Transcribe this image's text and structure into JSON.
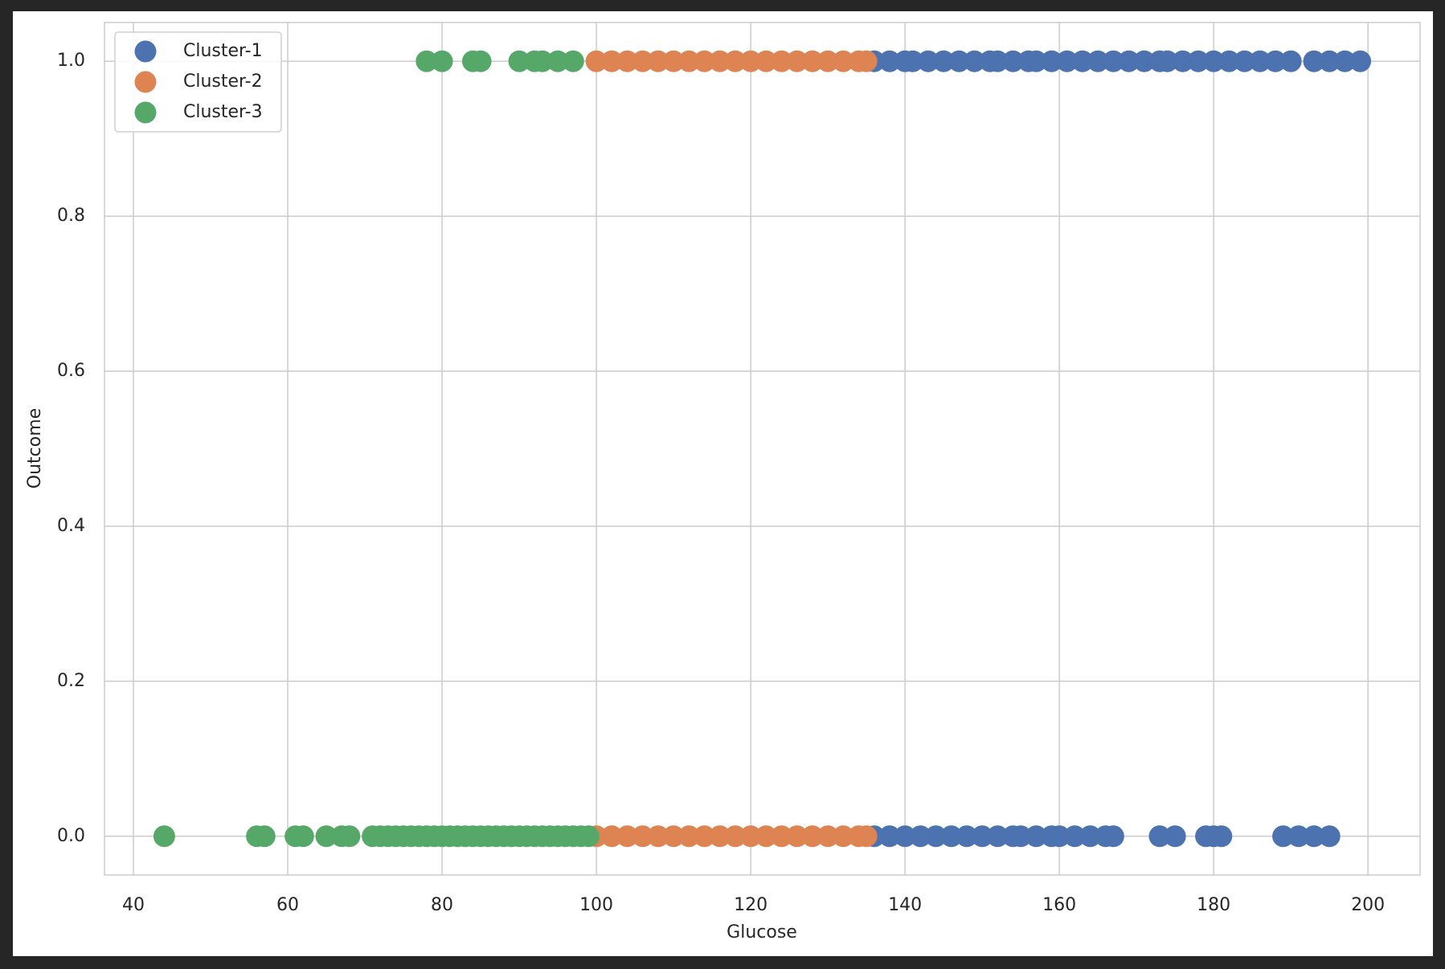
{
  "chart_data": {
    "type": "scatter",
    "x_label": "Glucose",
    "y_label": "Outcome",
    "xlim": [
      36.25,
      206.75
    ],
    "ylim": [
      -0.05,
      1.05
    ],
    "xticks": [
      40,
      60,
      80,
      100,
      120,
      140,
      160,
      180,
      200
    ],
    "yticks": [
      {
        "value": 0,
        "label": "0.0"
      },
      0.2,
      0.4,
      0.6,
      0.8,
      {
        "value": 1,
        "label": "1.0"
      }
    ],
    "grid": true,
    "legend": "upper left",
    "series": [
      {
        "name": "Cluster-1",
        "color": "#4c72b0",
        "x": [
          136,
          138,
          140,
          142,
          144,
          146,
          148,
          150,
          152,
          154,
          155,
          157,
          159,
          160,
          162,
          164,
          166,
          167,
          173,
          175,
          179,
          180,
          181,
          189,
          191,
          193,
          195,
          136,
          138,
          140,
          141,
          143,
          145,
          147,
          149,
          151,
          152,
          154,
          156,
          157,
          159,
          161,
          163,
          165,
          167,
          169,
          171,
          173,
          174,
          176,
          178,
          180,
          182,
          184,
          186,
          188,
          190,
          193,
          195,
          197,
          199
        ],
        "y": [
          0,
          0,
          0,
          0,
          0,
          0,
          0,
          0,
          0,
          0,
          0,
          0,
          0,
          0,
          0,
          0,
          0,
          0,
          0,
          0,
          0,
          0,
          0,
          0,
          0,
          0,
          0,
          1,
          1,
          1,
          1,
          1,
          1,
          1,
          1,
          1,
          1,
          1,
          1,
          1,
          1,
          1,
          1,
          1,
          1,
          1,
          1,
          1,
          1,
          1,
          1,
          1,
          1,
          1,
          1,
          1,
          1,
          1,
          1,
          1,
          1
        ]
      },
      {
        "name": "Cluster-2",
        "color": "#dd8452",
        "x": [
          100,
          102,
          104,
          106,
          108,
          110,
          112,
          114,
          116,
          118,
          120,
          122,
          124,
          126,
          128,
          130,
          132,
          134,
          135,
          100,
          102,
          104,
          106,
          108,
          110,
          112,
          114,
          116,
          118,
          120,
          122,
          124,
          126,
          128,
          130,
          132,
          134,
          135
        ],
        "y": [
          0,
          0,
          0,
          0,
          0,
          0,
          0,
          0,
          0,
          0,
          0,
          0,
          0,
          0,
          0,
          0,
          0,
          0,
          0,
          1,
          1,
          1,
          1,
          1,
          1,
          1,
          1,
          1,
          1,
          1,
          1,
          1,
          1,
          1,
          1,
          1,
          1,
          1
        ]
      },
      {
        "name": "Cluster-3",
        "color": "#55a868",
        "x": [
          44,
          56,
          57,
          61,
          62,
          65,
          67,
          68,
          71,
          72,
          73,
          74,
          75,
          76,
          77,
          78,
          79,
          80,
          81,
          82,
          83,
          84,
          85,
          86,
          87,
          88,
          89,
          90,
          91,
          92,
          93,
          94,
          95,
          96,
          97,
          98,
          99,
          78,
          80,
          84,
          85,
          90,
          92,
          93,
          95,
          97
        ],
        "y": [
          0,
          0,
          0,
          0,
          0,
          0,
          0,
          0,
          0,
          0,
          0,
          0,
          0,
          0,
          0,
          0,
          0,
          0,
          0,
          0,
          0,
          0,
          0,
          0,
          0,
          0,
          0,
          0,
          0,
          0,
          0,
          0,
          0,
          0,
          0,
          0,
          0,
          1,
          1,
          1,
          1,
          1,
          1,
          1,
          1,
          1
        ]
      }
    ]
  }
}
